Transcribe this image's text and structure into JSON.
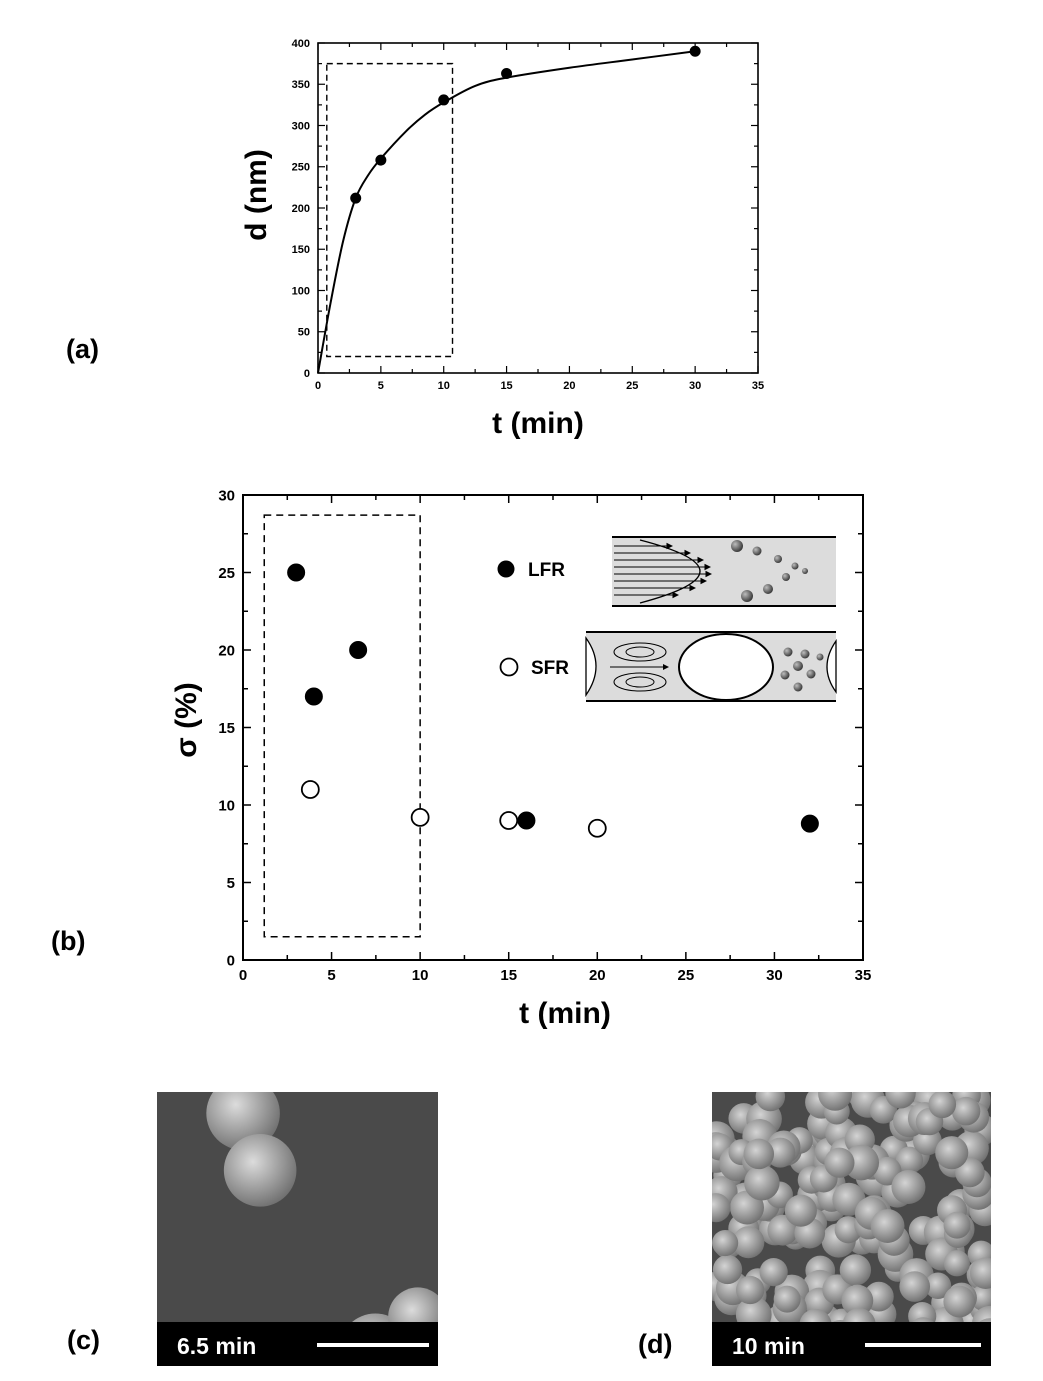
{
  "panel_labels": {
    "a": "(a)",
    "b": "(b)",
    "c": "(c)",
    "d": "(d)"
  },
  "chart_data": [
    {
      "type": "scatter",
      "panel": "(a)",
      "title": "",
      "xlabel": "t (min)",
      "ylabel": "d (nm)",
      "xlim": [
        0,
        35
      ],
      "ylim": [
        0,
        400
      ],
      "xticks": [
        0,
        5,
        10,
        15,
        20,
        25,
        30,
        35
      ],
      "yticks": [
        0,
        50,
        100,
        150,
        200,
        250,
        300,
        350,
        400
      ],
      "series": [
        {
          "marker": "filled-circle",
          "points": [
            [
              3,
              212
            ],
            [
              5,
              258
            ],
            [
              10,
              331
            ],
            [
              15,
              363
            ],
            [
              30,
              390
            ]
          ]
        }
      ],
      "fit_curve": [
        [
          0,
          0
        ],
        [
          1,
          85
        ],
        [
          2,
          160
        ],
        [
          3,
          212
        ],
        [
          4,
          240
        ],
        [
          5,
          260
        ],
        [
          7,
          293
        ],
        [
          8.5,
          313
        ],
        [
          10,
          328
        ],
        [
          12.5,
          348
        ],
        [
          15,
          358
        ],
        [
          20,
          370
        ],
        [
          25,
          380
        ],
        [
          30,
          390
        ]
      ],
      "dashed_box": {
        "x": [
          0.7,
          10.7
        ],
        "y": [
          20,
          375
        ]
      },
      "grid": false,
      "legend": "none"
    },
    {
      "type": "scatter",
      "panel": "(b)",
      "title": "",
      "xlabel": "t (min)",
      "ylabel": "σ (%)",
      "xlim": [
        0,
        35
      ],
      "ylim": [
        0,
        30
      ],
      "xticks": [
        0,
        5,
        10,
        15,
        20,
        25,
        30,
        35
      ],
      "yticks": [
        0,
        5,
        10,
        15,
        20,
        25,
        30
      ],
      "series": [
        {
          "name": "LFR",
          "marker": "filled-circle",
          "points": [
            [
              3,
              25
            ],
            [
              4,
              17
            ],
            [
              6.5,
              20
            ],
            [
              16,
              9
            ],
            [
              32,
              8.8
            ]
          ]
        },
        {
          "name": "SFR",
          "marker": "open-circle",
          "points": [
            [
              3.8,
              11
            ],
            [
              10,
              9.2
            ],
            [
              15,
              9
            ],
            [
              20,
              8.5
            ]
          ]
        }
      ],
      "dashed_box": {
        "x": [
          1.2,
          10
        ],
        "y": [
          1.5,
          28.7
        ]
      },
      "grid": false,
      "legend": "upper-right, with flow schematics"
    }
  ],
  "sem_images": [
    {
      "panel": "(c)",
      "time_label": "6.5 min"
    },
    {
      "panel": "(d)",
      "time_label": "10 min"
    }
  ],
  "colors": {
    "ink": "#000000",
    "channel_fill": "#dcdcdc",
    "sem_bg": "#3a3a3a"
  }
}
